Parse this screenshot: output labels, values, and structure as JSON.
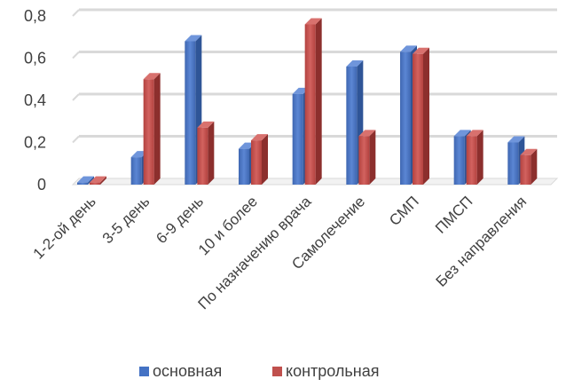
{
  "chart_data": {
    "type": "bar",
    "categories": [
      "1-2-ой день",
      "3-5 день",
      "6-9 день",
      "10 и более",
      "По назначению врача",
      "Самолечение",
      "СМП",
      "ПМСП",
      "Без направления"
    ],
    "series": [
      {
        "name": "основная",
        "values": [
          0.01,
          0.13,
          0.68,
          0.17,
          0.43,
          0.56,
          0.63,
          0.23,
          0.2
        ],
        "color": "#4472C4"
      },
      {
        "name": "контрольная",
        "values": [
          0.01,
          0.5,
          0.27,
          0.21,
          0.76,
          0.23,
          0.62,
          0.23,
          0.14
        ],
        "color": "#C0504D"
      }
    ],
    "yticks": [
      "0",
      "0,2",
      "0,4",
      "0,6",
      "0,8"
    ],
    "ylim": [
      0,
      0.8
    ],
    "grid": true,
    "legend": "bottom"
  }
}
